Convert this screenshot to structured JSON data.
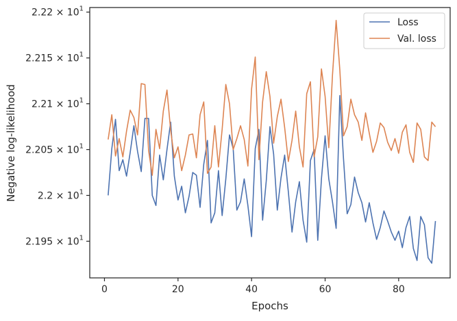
{
  "chart_data": {
    "type": "line",
    "xlabel": "Epochs",
    "ylabel": "Negative log-likelihood",
    "xlim": [
      -4,
      94
    ],
    "ylim": [
      21.91,
      22.205
    ],
    "x_ticks": [
      0,
      20,
      40,
      60,
      80
    ],
    "y_ticks": [
      {
        "value": 21.95,
        "mantissa": "2.195",
        "exponent": "1"
      },
      {
        "value": 22.0,
        "mantissa": "2.2",
        "exponent": "1"
      },
      {
        "value": 22.05,
        "mantissa": "2.205",
        "exponent": "1"
      },
      {
        "value": 22.1,
        "mantissa": "2.21",
        "exponent": "1"
      },
      {
        "value": 22.15,
        "mantissa": "2.215",
        "exponent": "1"
      },
      {
        "value": 22.2,
        "mantissa": "2.22",
        "exponent": "1"
      }
    ],
    "tick_base": "10",
    "legend_position": "top-right",
    "grid": false,
    "x": [
      1,
      2,
      3,
      4,
      5,
      6,
      7,
      8,
      9,
      10,
      11,
      12,
      13,
      14,
      15,
      16,
      17,
      18,
      19,
      20,
      21,
      22,
      23,
      24,
      25,
      26,
      27,
      28,
      29,
      30,
      31,
      32,
      33,
      34,
      35,
      36,
      37,
      38,
      39,
      40,
      41,
      42,
      43,
      44,
      45,
      46,
      47,
      48,
      49,
      50,
      51,
      52,
      53,
      54,
      55,
      56,
      57,
      58,
      59,
      60,
      61,
      62,
      63,
      64,
      65,
      66,
      67,
      68,
      69,
      70,
      71,
      72,
      73,
      74,
      75,
      76,
      77,
      78,
      79,
      80,
      81,
      82,
      83,
      84,
      85,
      86,
      87,
      88,
      89,
      90
    ],
    "series": [
      {
        "name": "Loss",
        "color": "#4c72b0",
        "values": [
          22.0,
          22.051,
          22.083,
          22.027,
          22.039,
          22.021,
          22.047,
          22.076,
          22.048,
          22.026,
          22.084,
          22.084,
          22.0,
          21.989,
          22.044,
          22.017,
          22.05,
          22.08,
          22.021,
          21.995,
          22.01,
          21.981,
          21.999,
          22.025,
          22.022,
          21.987,
          22.034,
          22.06,
          21.97,
          21.981,
          22.027,
          21.978,
          22.018,
          22.066,
          22.051,
          21.984,
          21.993,
          22.018,
          21.989,
          21.955,
          22.051,
          22.072,
          21.973,
          22.016,
          22.075,
          22.045,
          21.984,
          22.019,
          22.044,
          22.004,
          21.96,
          21.993,
          22.015,
          21.973,
          21.949,
          22.038,
          22.05,
          21.951,
          22.018,
          22.065,
          22.018,
          21.993,
          21.964,
          22.109,
          22.04,
          21.98,
          21.99,
          22.02,
          22.003,
          21.992,
          21.971,
          21.992,
          21.97,
          21.952,
          21.965,
          21.983,
          21.972,
          21.96,
          21.951,
          21.961,
          21.943,
          21.965,
          21.977,
          21.942,
          21.929,
          21.977,
          21.968,
          21.932,
          21.926,
          21.972
        ]
      },
      {
        "name": "Val. loss",
        "color": "#dd8452",
        "values": [
          22.061,
          22.088,
          22.043,
          22.062,
          22.042,
          22.07,
          22.093,
          22.085,
          22.066,
          22.122,
          22.121,
          22.049,
          22.022,
          22.072,
          22.051,
          22.092,
          22.115,
          22.071,
          22.041,
          22.053,
          22.027,
          22.044,
          22.066,
          22.067,
          22.041,
          22.088,
          22.102,
          22.024,
          22.031,
          22.076,
          22.031,
          22.072,
          22.121,
          22.1,
          22.05,
          22.062,
          22.076,
          22.061,
          22.032,
          22.116,
          22.151,
          22.039,
          22.102,
          22.135,
          22.108,
          22.057,
          22.086,
          22.105,
          22.074,
          22.037,
          22.06,
          22.092,
          22.053,
          22.031,
          22.111,
          22.124,
          22.042,
          22.064,
          22.138,
          22.108,
          22.052,
          22.131,
          22.191,
          22.137,
          22.065,
          22.075,
          22.105,
          22.088,
          22.08,
          22.06,
          22.09,
          22.068,
          22.047,
          22.059,
          22.079,
          22.074,
          22.058,
          22.049,
          22.062,
          22.046,
          22.069,
          22.077,
          22.047,
          22.036,
          22.079,
          22.072,
          22.042,
          22.038,
          22.08,
          22.075
        ]
      }
    ]
  }
}
